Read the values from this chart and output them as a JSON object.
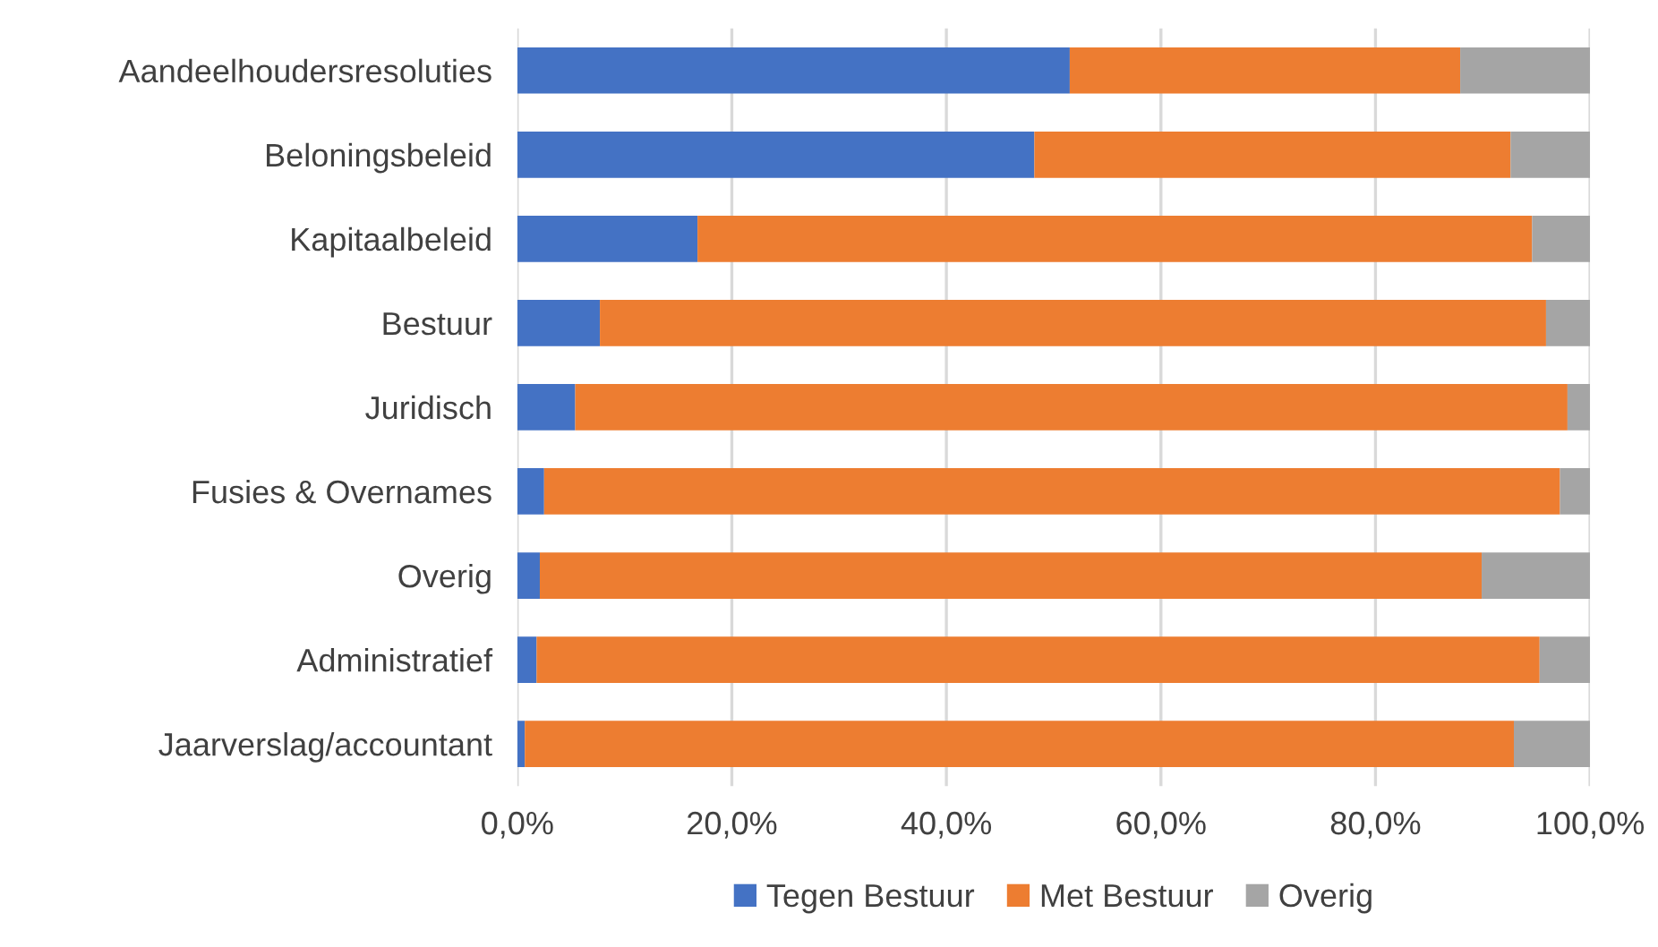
{
  "chart_data": {
    "type": "bar",
    "orientation": "horizontal",
    "stacked": true,
    "categories": [
      "Aandeelhoudersresoluties",
      "Beloningsbeleid",
      "Kapitaalbeleid",
      "Bestuur",
      "Juridisch",
      "Fusies & Overnames",
      "Overig",
      "Administratief",
      "Jaarverslag/accountant"
    ],
    "series": [
      {
        "name": "Tegen Bestuur",
        "color": "#4472c4",
        "values": [
          51.5,
          48.2,
          16.8,
          7.7,
          5.4,
          2.5,
          2.1,
          1.8,
          0.7
        ]
      },
      {
        "name": "Met Bestuur",
        "color": "#ed7d31",
        "values": [
          36.4,
          44.4,
          77.8,
          88.2,
          92.5,
          94.7,
          87.8,
          93.5,
          92.2
        ]
      },
      {
        "name": "Overig",
        "color": "#a5a5a5",
        "values": [
          12.1,
          7.4,
          5.4,
          4.1,
          2.1,
          2.8,
          10.1,
          4.7,
          7.1
        ]
      }
    ],
    "xlim": [
      0,
      100
    ],
    "xticks": [
      {
        "value": 0,
        "label": "0,0%"
      },
      {
        "value": 20,
        "label": "20,0%"
      },
      {
        "value": 40,
        "label": "40,0%"
      },
      {
        "value": 60,
        "label": "60,0%"
      },
      {
        "value": 80,
        "label": "80,0%"
      },
      {
        "value": 100,
        "label": "100,0%"
      }
    ],
    "grid": "x",
    "legend": "bottom"
  }
}
